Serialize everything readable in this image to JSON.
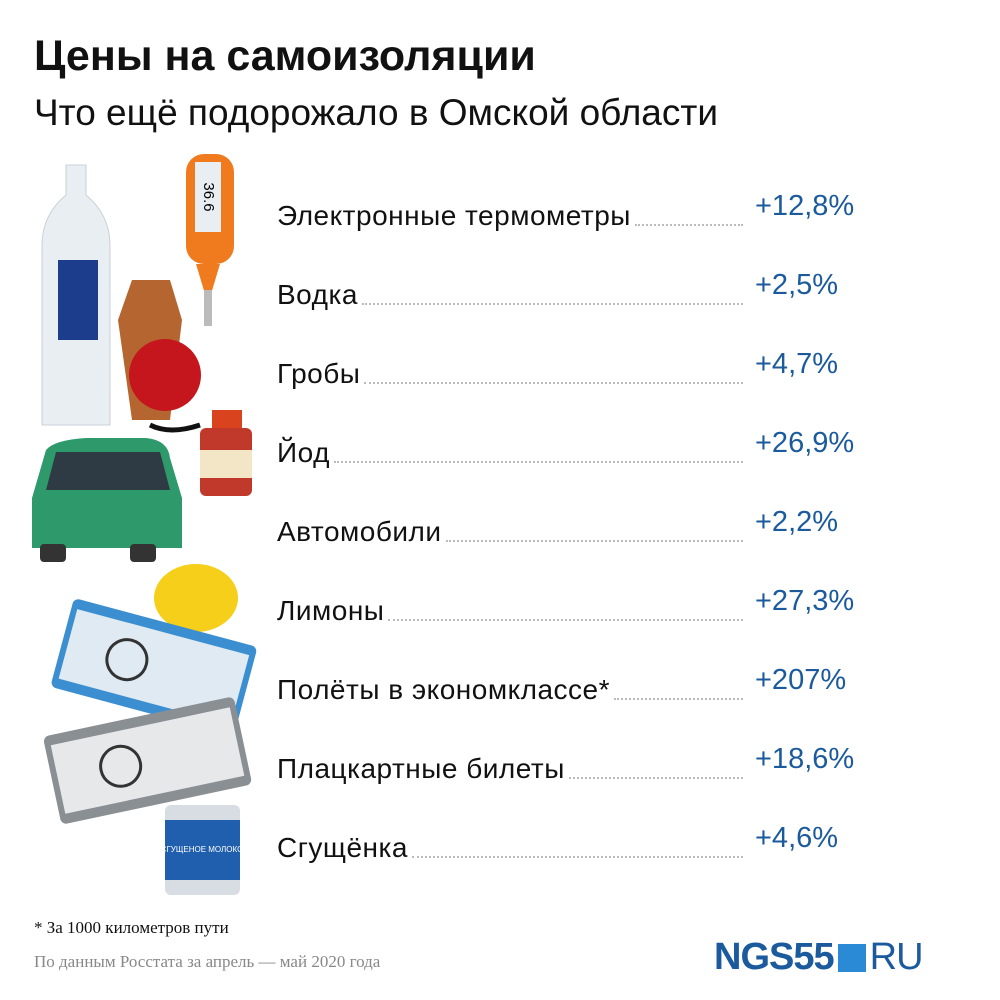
{
  "header": {
    "title": "Цены на самоизоляции",
    "subtitle": "Что ещё подорожало в Омской области"
  },
  "items": [
    {
      "label": "Электронные термометры",
      "value": "+12,8%"
    },
    {
      "label": "Водка",
      "value": "+2,5%"
    },
    {
      "label": "Гробы",
      "value": "+4,7%"
    },
    {
      "label": "Йод",
      "value": "+26,9%"
    },
    {
      "label": "Автомобили",
      "value": "+2,2%"
    },
    {
      "label": "Лимоны",
      "value": "+27,3%"
    },
    {
      "label": "Полёты в экономклассе*",
      "value": "+207%"
    },
    {
      "label": "Плацкартные билеты",
      "value": "+18,6%"
    },
    {
      "label": "Сгущёнка",
      "value": "+4,6%"
    }
  ],
  "thermometer": "36.6",
  "can_label": "СГУЩЕНОЕ МОЛОКО",
  "footnote": "* За 1000 километров пути",
  "source": "По данным Росстата за апрель — май 2020 года",
  "logo": {
    "name": "NGS55",
    "domain": "RU"
  }
}
